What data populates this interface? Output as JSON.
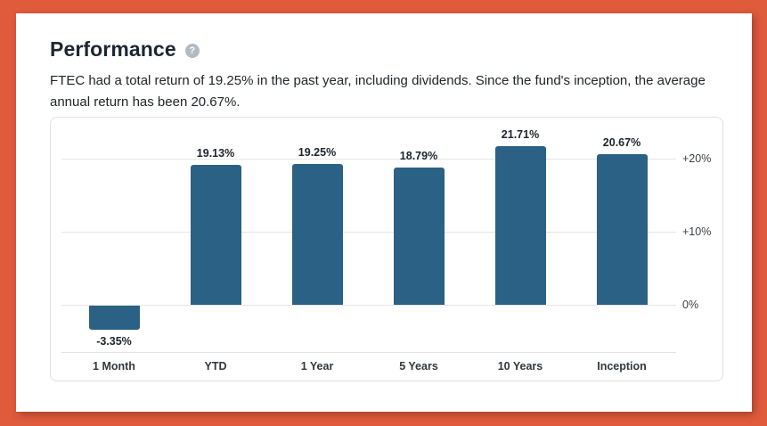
{
  "header": {
    "title": "Performance",
    "help_glyph": "?"
  },
  "description": "FTEC had a total return of 19.25% in the past year, including dividends. Since the fund's inception, the average annual return has been 20.67%.",
  "colors": {
    "frame": "#e05a3c",
    "card": "#ffffff",
    "bar": "#2b6185",
    "gridline": "#e6e6e6"
  },
  "chart_data": {
    "type": "bar",
    "title": "Performance",
    "categories": [
      "1 Month",
      "YTD",
      "1 Year",
      "5 Years",
      "10 Years",
      "Inception"
    ],
    "values": [
      -3.35,
      19.13,
      19.25,
      18.79,
      21.71,
      20.67
    ],
    "value_labels": [
      "-3.35%",
      "19.13%",
      "19.25%",
      "18.79%",
      "21.71%",
      "20.67%"
    ],
    "y_ticks": [
      {
        "value": 20,
        "label": "+20%"
      },
      {
        "value": 10,
        "label": "+10%"
      },
      {
        "value": 0,
        "label": "0%"
      }
    ],
    "ylim": [
      -6,
      26
    ],
    "xlabel": "",
    "ylabel": "",
    "grid": true,
    "legend": "none",
    "bar_color": "#2b6185"
  }
}
